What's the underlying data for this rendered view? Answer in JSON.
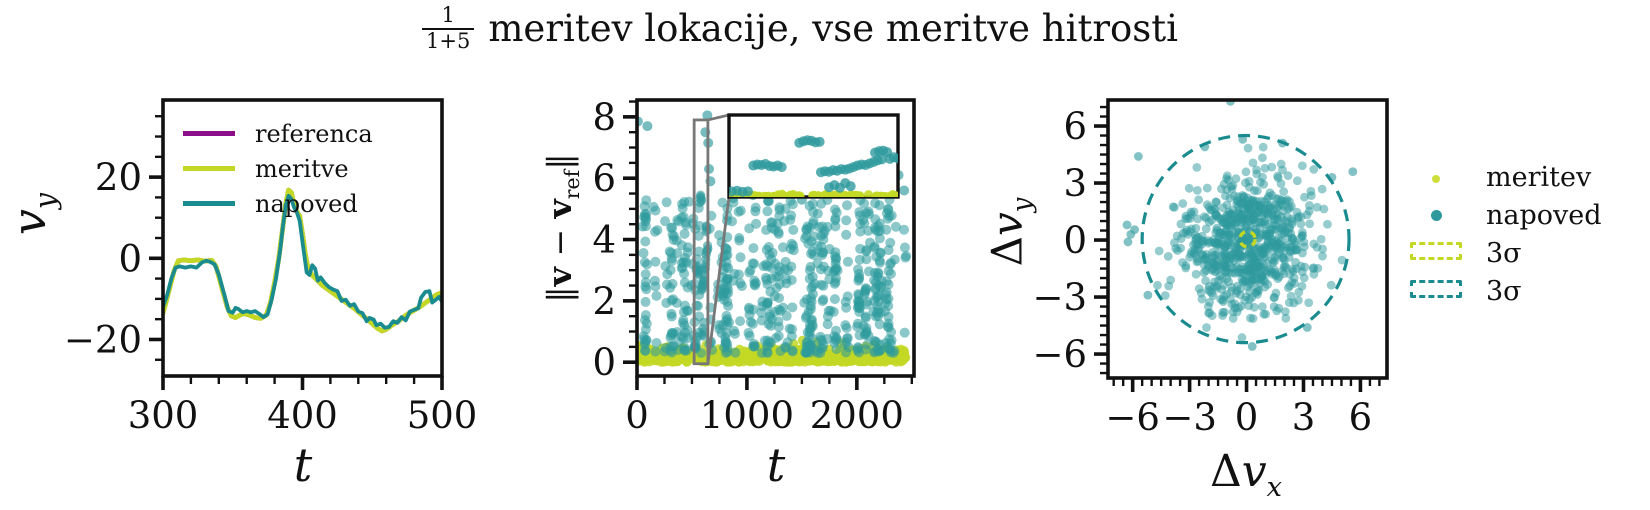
{
  "title": {
    "frac_num": "1",
    "frac_den": "1+5",
    "text": "meritev lokacije, vse meritve hitrosti"
  },
  "colors": {
    "referenca": "#8b0e8b",
    "meritve": "#c3d825",
    "napoved": "#1a8c90",
    "napoved_dot": "#2e9a9d",
    "meritve_dot": "#cede3a",
    "gray": "#777777",
    "ink": "#111111"
  },
  "chart_data": [
    {
      "type": "line",
      "title": "velocity tracking subplot",
      "xlabel": "t",
      "ylabel": {
        "main": "v",
        "sub": "y"
      },
      "xlim": [
        300,
        500
      ],
      "ylim": [
        -29,
        39
      ],
      "xticks": [
        300,
        400,
        500
      ],
      "yticks": [
        -20,
        0,
        20
      ],
      "xminor_step": 20,
      "yminor_step": 5,
      "legend": [
        {
          "label": "referenca",
          "color": "referenca"
        },
        {
          "label": "meritve",
          "color": "meritve"
        },
        {
          "label": "napoved",
          "color": "napoved"
        }
      ],
      "series": {
        "referenca": [
          [
            300,
            -13.5
          ],
          [
            302,
            -11
          ],
          [
            305,
            -7
          ],
          [
            308,
            -3
          ],
          [
            311,
            -0.6
          ],
          [
            315,
            -0.4
          ],
          [
            320,
            -0.6
          ],
          [
            325,
            -0.4
          ],
          [
            330,
            -0.7
          ],
          [
            335,
            -0.5
          ],
          [
            338,
            -2
          ],
          [
            342,
            -7
          ],
          [
            346,
            -12
          ],
          [
            349,
            -14.2
          ],
          [
            352,
            -14.6
          ],
          [
            355,
            -14
          ],
          [
            358,
            -13.6
          ],
          [
            362,
            -14
          ],
          [
            366,
            -14.6
          ],
          [
            370,
            -14.8
          ],
          [
            374,
            -14
          ],
          [
            377,
            -11
          ],
          [
            380,
            -6
          ],
          [
            383,
            0
          ],
          [
            386,
            8
          ],
          [
            388,
            13.5
          ],
          [
            390,
            16.8
          ],
          [
            392,
            16.2
          ],
          [
            394,
            13.2
          ],
          [
            396,
            11.5
          ],
          [
            398,
            10.4
          ],
          [
            400,
            6
          ],
          [
            402,
            1
          ],
          [
            404,
            -2.5
          ],
          [
            407,
            -4.2
          ],
          [
            410,
            -5.2
          ],
          [
            414,
            -6.6
          ],
          [
            418,
            -7.6
          ],
          [
            422,
            -8.6
          ],
          [
            426,
            -9.6
          ],
          [
            430,
            -10.6
          ],
          [
            434,
            -11.6
          ],
          [
            438,
            -12.6
          ],
          [
            442,
            -13.8
          ],
          [
            446,
            -14.9
          ],
          [
            450,
            -16.1
          ],
          [
            454,
            -17.3
          ],
          [
            457,
            -17.9
          ],
          [
            460,
            -17.5
          ],
          [
            464,
            -16.5
          ],
          [
            468,
            -15.7
          ],
          [
            472,
            -14.6
          ],
          [
            476,
            -13.6
          ],
          [
            480,
            -12.8
          ],
          [
            484,
            -12
          ],
          [
            488,
            -11
          ],
          [
            492,
            -10
          ],
          [
            496,
            -9
          ],
          [
            500,
            -8.4
          ]
        ],
        "meritve": [
          [
            300,
            -13.5
          ],
          [
            302,
            -11
          ],
          [
            305,
            -7
          ],
          [
            308,
            -3
          ],
          [
            311,
            -0.6
          ],
          [
            315,
            -0.4
          ],
          [
            320,
            -0.6
          ],
          [
            325,
            -0.4
          ],
          [
            330,
            -0.7
          ],
          [
            335,
            -0.5
          ],
          [
            338,
            -2
          ],
          [
            342,
            -7
          ],
          [
            346,
            -12
          ],
          [
            349,
            -14.2
          ],
          [
            352,
            -14.6
          ],
          [
            355,
            -14
          ],
          [
            358,
            -13.6
          ],
          [
            362,
            -14
          ],
          [
            366,
            -14.6
          ],
          [
            370,
            -14.8
          ],
          [
            374,
            -14
          ],
          [
            377,
            -11
          ],
          [
            380,
            -6
          ],
          [
            383,
            0
          ],
          [
            386,
            8
          ],
          [
            388,
            13.5
          ],
          [
            390,
            16.8
          ],
          [
            392,
            16.2
          ],
          [
            394,
            13.2
          ],
          [
            396,
            11.5
          ],
          [
            398,
            10.4
          ],
          [
            400,
            6
          ],
          [
            402,
            1
          ],
          [
            404,
            -2.5
          ],
          [
            407,
            -4.2
          ],
          [
            410,
            -5.2
          ],
          [
            414,
            -6.6
          ],
          [
            418,
            -7.6
          ],
          [
            422,
            -8.6
          ],
          [
            426,
            -9.6
          ],
          [
            430,
            -10.6
          ],
          [
            434,
            -11.6
          ],
          [
            438,
            -12.6
          ],
          [
            442,
            -13.8
          ],
          [
            446,
            -14.9
          ],
          [
            450,
            -16.1
          ],
          [
            454,
            -17.3
          ],
          [
            457,
            -17.9
          ],
          [
            460,
            -17.5
          ],
          [
            464,
            -16.5
          ],
          [
            468,
            -15.7
          ],
          [
            472,
            -14.6
          ],
          [
            476,
            -13.6
          ],
          [
            480,
            -12.8
          ],
          [
            484,
            -12
          ],
          [
            488,
            -11
          ],
          [
            492,
            -10
          ],
          [
            496,
            -9
          ],
          [
            500,
            -8.4
          ]
        ],
        "napoved": [
          [
            300,
            -12
          ],
          [
            303,
            -9
          ],
          [
            306,
            -5
          ],
          [
            309,
            -2.3
          ],
          [
            312,
            -2
          ],
          [
            316,
            -2.3
          ],
          [
            320,
            -2
          ],
          [
            324,
            -2.3
          ],
          [
            328,
            -1
          ],
          [
            331,
            -0.6
          ],
          [
            334,
            -0.9
          ],
          [
            337,
            -1.5
          ],
          [
            340,
            -4
          ],
          [
            344,
            -9
          ],
          [
            347,
            -13
          ],
          [
            350,
            -13.4
          ],
          [
            352,
            -12.2
          ],
          [
            354,
            -12.5
          ],
          [
            357,
            -13.3
          ],
          [
            360,
            -13
          ],
          [
            363,
            -13.3
          ],
          [
            366,
            -13
          ],
          [
            369,
            -13.7
          ],
          [
            372,
            -14.5
          ],
          [
            375,
            -13.8
          ],
          [
            378,
            -10
          ],
          [
            381,
            -5
          ],
          [
            384,
            2
          ],
          [
            386,
            8
          ],
          [
            388,
            13
          ],
          [
            390,
            15.4
          ],
          [
            392,
            14.6
          ],
          [
            394,
            12.5
          ],
          [
            396,
            11.3
          ],
          [
            398,
            9.2
          ],
          [
            400,
            4
          ],
          [
            402,
            -1
          ],
          [
            403,
            -3.5
          ],
          [
            405,
            -4.1
          ],
          [
            407,
            -1.7
          ],
          [
            409,
            -2.5
          ],
          [
            411,
            -5.5
          ],
          [
            413,
            -4.7
          ],
          [
            416,
            -6.1
          ],
          [
            419,
            -7.1
          ],
          [
            422,
            -7.7
          ],
          [
            425,
            -8.1
          ],
          [
            428,
            -10.5
          ],
          [
            431,
            -10.2
          ],
          [
            434,
            -11.7
          ],
          [
            437,
            -11.3
          ],
          [
            440,
            -13.1
          ],
          [
            443,
            -13.5
          ],
          [
            446,
            -15.5
          ],
          [
            448,
            -14.7
          ],
          [
            451,
            -15.1
          ],
          [
            453,
            -16.5
          ],
          [
            456,
            -16.1
          ],
          [
            459,
            -17.1
          ],
          [
            462,
            -16.9
          ],
          [
            465,
            -15.5
          ],
          [
            468,
            -15.9
          ],
          [
            471,
            -14.5
          ],
          [
            474,
            -15.3
          ],
          [
            477,
            -13.1
          ],
          [
            480,
            -12.7
          ],
          [
            483,
            -12.3
          ],
          [
            485,
            -9.7
          ],
          [
            488,
            -8.3
          ],
          [
            491,
            -8.1
          ],
          [
            493,
            -10.9
          ],
          [
            496,
            -10.1
          ],
          [
            498,
            -9.5
          ],
          [
            500,
            -10.7
          ]
        ]
      }
    },
    {
      "type": "scatter",
      "title": "velocity error norm subplot",
      "xlabel": "t",
      "ylabel": {
        "open": "‖",
        "v1": "v",
        "minus": " − ",
        "v2": "v",
        "sub": "ref",
        "close": "‖"
      },
      "xlim": [
        0,
        2520
      ],
      "ylim": [
        -0.45,
        8.55
      ],
      "xticks": [
        0,
        1000,
        2000
      ],
      "yticks": [
        0,
        2,
        4,
        6,
        8
      ],
      "xminor_step": 250,
      "yminor_step": 0.5,
      "napoved_cloud": {
        "n_clusters": 95,
        "cluster_size_min": 4,
        "cluster_size_max": 11,
        "t_range": [
          15,
          2450
        ],
        "y_range": [
          0.3,
          5.3
        ],
        "t_jitter": 8,
        "seed": 11
      },
      "meritve_band": {
        "n": 640,
        "t_range": [
          0,
          2450
        ],
        "y_max": 0.72,
        "seed": 7
      },
      "napoved_outliers": [
        [
          8,
          7.85
        ],
        [
          95,
          7.7
        ],
        [
          640,
          8.05
        ],
        [
          622,
          7.5
        ],
        [
          648,
          7.15
        ],
        [
          655,
          6.3
        ],
        [
          668,
          5.9
        ],
        [
          875,
          5.35
        ],
        [
          905,
          5.5
        ],
        [
          1055,
          5.45
        ],
        [
          1150,
          5.85
        ],
        [
          1165,
          5.55
        ],
        [
          1390,
          5.6
        ],
        [
          1500,
          5.3
        ],
        [
          2255,
          5.5
        ],
        [
          2290,
          6.55
        ],
        [
          2310,
          5.9
        ],
        [
          2380,
          6.1
        ],
        [
          2430,
          5.6
        ]
      ],
      "zoom_region": {
        "t": [
          520,
          645
        ],
        "v": [
          -0.05,
          7.9
        ]
      },
      "zoom_points_napoved": [
        [
          522,
          0.5
        ],
        [
          526,
          0.55
        ],
        [
          530,
          0.45
        ],
        [
          534,
          0.5
        ],
        [
          538,
          3.0
        ],
        [
          541,
          3.1
        ],
        [
          544,
          3.05
        ],
        [
          547,
          3.15
        ],
        [
          550,
          2.95
        ],
        [
          553,
          2.9
        ],
        [
          556,
          3.0
        ],
        [
          559,
          2.85
        ],
        [
          572,
          5.2
        ],
        [
          575,
          5.35
        ],
        [
          578,
          5.45
        ],
        [
          581,
          5.4
        ],
        [
          584,
          5.25
        ],
        [
          587,
          5.3
        ],
        [
          588,
          2.35
        ],
        [
          591,
          2.45
        ],
        [
          594,
          2.4
        ],
        [
          597,
          2.55
        ],
        [
          600,
          2.5
        ],
        [
          603,
          2.65
        ],
        [
          606,
          2.6
        ],
        [
          609,
          2.7
        ],
        [
          594,
          0.9
        ],
        [
          598,
          1.1
        ],
        [
          602,
          0.85
        ],
        [
          606,
          1.3
        ],
        [
          610,
          1.0
        ],
        [
          612,
          2.85
        ],
        [
          615,
          3.0
        ],
        [
          618,
          3.1
        ],
        [
          621,
          3.05
        ],
        [
          624,
          3.2
        ],
        [
          627,
          3.35
        ],
        [
          630,
          3.5
        ],
        [
          633,
          3.6
        ],
        [
          628,
          4.25
        ],
        [
          631,
          4.4
        ],
        [
          634,
          4.45
        ],
        [
          637,
          4.3
        ],
        [
          639,
          3.65
        ],
        [
          642,
          3.8
        ],
        [
          645,
          3.7
        ]
      ],
      "inset_band": {
        "n": 85,
        "y_max": 0.3,
        "seed": 13
      }
    },
    {
      "type": "scatter",
      "title": "velocity error distribution subplot",
      "xlabel": {
        "delta": "Δ",
        "v": "v",
        "sub": "x"
      },
      "ylabel": {
        "delta": "Δ",
        "v": "v",
        "sub": "y"
      },
      "xlim": [
        -7.3,
        7.4
      ],
      "ylim": [
        -7.26,
        7.37
      ],
      "xticks": [
        -6,
        -3,
        0,
        3,
        6
      ],
      "yticks": [
        -6,
        -3,
        0,
        3,
        6
      ],
      "xminor_step": 0.5,
      "yminor_step": 0.5,
      "napoved_cloud": {
        "n": 760,
        "sigma": 1.75,
        "center": [
          0.05,
          -0.1
        ],
        "clip_radius": 5.3,
        "seed": 5
      },
      "meritve_cloud": {
        "n": 28,
        "sigma": 0.12,
        "center": [
          0,
          0.05
        ],
        "seed": 3
      },
      "napoved_outliers": [
        [
          -6.3,
          0.8
        ],
        [
          -6.1,
          0.3
        ],
        [
          -5.9,
          0.55
        ],
        [
          -6.25,
          -0.1
        ],
        [
          -0.85,
          7.3
        ],
        [
          -5.7,
          4.4
        ],
        [
          5.6,
          3.6
        ],
        [
          4.5,
          3.3
        ],
        [
          -5.2,
          -2.9
        ],
        [
          3.2,
          -4.6
        ],
        [
          0.3,
          -5.6
        ],
        [
          -2.2,
          4.9
        ],
        [
          1.9,
          5.1
        ],
        [
          -0.2,
          5.3
        ]
      ],
      "sigma_circle_napoved": {
        "r": 5.45,
        "center": [
          -0.05,
          0.05
        ]
      },
      "sigma_circle_meritve": {
        "r": 0.4,
        "center": [
          0.05,
          0.05
        ]
      },
      "legend": [
        {
          "label": "meritev",
          "marker": "dot",
          "color": "meritve_dot"
        },
        {
          "label": "napoved",
          "marker": "dot",
          "color": "napoved_dot"
        },
        {
          "label": "3σ",
          "marker": "dashrect",
          "color": "meritve"
        },
        {
          "label": "3σ",
          "marker": "dashrect",
          "color": "napoved"
        }
      ]
    }
  ]
}
